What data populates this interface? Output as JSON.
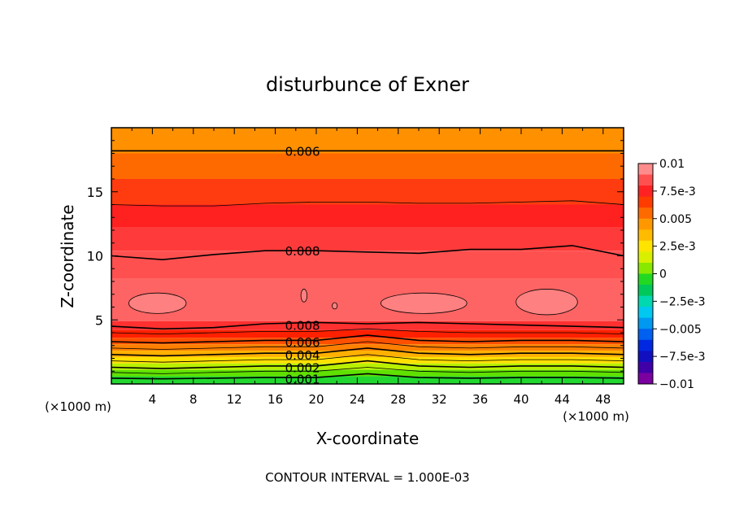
{
  "chart_data": {
    "type": "contour",
    "title": "disturbunce of Exner",
    "xlabel": "X-coordinate",
    "ylabel": "Z-coordinate",
    "x_unit_left": "(×1000 m)",
    "x_unit_right": "(×1000 m)",
    "xlim": [
      0,
      50
    ],
    "ylim": [
      0,
      20
    ],
    "xticks": [
      4,
      8,
      12,
      16,
      20,
      24,
      28,
      32,
      36,
      40,
      44,
      48
    ],
    "xtick_labels": [
      "4",
      "8",
      "12",
      "16",
      "20",
      "24",
      "28",
      "32",
      "36",
      "40",
      "44",
      "48"
    ],
    "yticks": [
      5,
      10,
      15
    ],
    "ytick_labels": [
      "5",
      "10",
      "15"
    ],
    "footer": "CONTOUR INTERVAL = 1.000E-03",
    "contour_interval": 0.001,
    "contour_labels": [
      {
        "text": "0.006",
        "value": 0.006,
        "x": 18.5,
        "z": 18.2
      },
      {
        "text": "0.008",
        "value": 0.008,
        "x": 18.5,
        "z": 10.4
      },
      {
        "text": "0.008",
        "value": 0.008,
        "x": 18.5,
        "z": 4.6
      },
      {
        "text": "0.006",
        "value": 0.006,
        "x": 18.5,
        "z": 3.3
      },
      {
        "text": "0.004",
        "value": 0.004,
        "x": 18.5,
        "z": 2.3
      },
      {
        "text": "0.002",
        "value": 0.002,
        "x": 18.5,
        "z": 1.3
      },
      {
        "text": "0.001",
        "value": 0.001,
        "x": 18.5,
        "z": 0.4
      }
    ],
    "colorbar": {
      "labels": [
        "0.01",
        "7.5e-3",
        "0.005",
        "2.5e-3",
        "0",
        "−2.5e-3",
        "−0.005",
        "−7.5e-3",
        "−0.01"
      ],
      "colors_top_to_bottom": [
        "#ff8c8c",
        "#ff5050",
        "#ff2222",
        "#ff3c00",
        "#ff6a00",
        "#ff9800",
        "#ffbb00",
        "#ffe400",
        "#d8f000",
        "#88e800",
        "#22d822",
        "#00c85a",
        "#00d8b0",
        "#00c8f0",
        "#0098f0",
        "#0060f0",
        "#0028e0",
        "#1010c0",
        "#4000a8",
        "#7a00a0"
      ]
    },
    "field_bands": [
      {
        "z_top": 20.0,
        "z_bot": 18.0,
        "color": "#ff9000"
      },
      {
        "z_top": 18.0,
        "z_bot": 16.0,
        "color": "#ff6a00"
      },
      {
        "z_top": 16.0,
        "z_bot": 14.0,
        "color": "#ff3c10"
      },
      {
        "z_top": 14.0,
        "z_bot": 12.2,
        "color": "#ff2020"
      },
      {
        "z_top": 12.2,
        "z_bot": 10.4,
        "color": "#ff3a3a"
      },
      {
        "z_top": 10.4,
        "z_bot": 8.2,
        "color": "#ff5050"
      },
      {
        "z_top": 8.2,
        "z_bot": 4.9,
        "color": "#ff6464"
      },
      {
        "z_top": 4.9,
        "z_bot": 4.2,
        "color": "#ff3030"
      },
      {
        "z_top": 4.2,
        "z_bot": 3.6,
        "color": "#ff2000"
      },
      {
        "z_top": 3.6,
        "z_bot": 3.1,
        "color": "#ff5000"
      },
      {
        "z_top": 3.1,
        "z_bot": 2.6,
        "color": "#ff8000"
      },
      {
        "z_top": 2.6,
        "z_bot": 2.1,
        "color": "#ffb000"
      },
      {
        "z_top": 2.1,
        "z_bot": 1.6,
        "color": "#ffe000"
      },
      {
        "z_top": 1.6,
        "z_bot": 1.1,
        "color": "#b8f000"
      },
      {
        "z_top": 1.1,
        "z_bot": 0.6,
        "color": "#60e000"
      },
      {
        "z_top": 0.6,
        "z_bot": 0.0,
        "color": "#22d830"
      }
    ],
    "contour_lines": [
      {
        "value": 0.006,
        "z": [
          18.2,
          18.2,
          18.2,
          18.2,
          18.2,
          18.2,
          18.2,
          18.2,
          18.2,
          18.2,
          18.2
        ],
        "weight": "bold"
      },
      {
        "value": 0.007,
        "z": [
          14.0,
          13.9,
          13.9,
          14.1,
          14.2,
          14.2,
          14.1,
          14.1,
          14.2,
          14.3,
          14.0
        ],
        "weight": "thin"
      },
      {
        "value": 0.008,
        "z": [
          10.0,
          9.7,
          10.1,
          10.4,
          10.4,
          10.3,
          10.2,
          10.5,
          10.5,
          10.8,
          10.0
        ],
        "weight": "bold"
      },
      {
        "value": 0.008,
        "z": [
          4.5,
          4.3,
          4.4,
          4.7,
          4.8,
          4.7,
          4.8,
          4.7,
          4.6,
          4.5,
          4.4
        ],
        "weight": "bold"
      },
      {
        "value": 0.007,
        "z": [
          4.0,
          3.9,
          4.0,
          4.1,
          4.1,
          4.3,
          4.1,
          4.0,
          4.0,
          4.0,
          3.9
        ],
        "weight": "thin"
      },
      {
        "value": 0.006,
        "z": [
          3.3,
          3.2,
          3.3,
          3.4,
          3.4,
          3.8,
          3.4,
          3.3,
          3.4,
          3.4,
          3.3
        ],
        "weight": "bold"
      },
      {
        "value": 0.005,
        "z": [
          2.8,
          2.7,
          2.8,
          2.9,
          2.9,
          3.3,
          2.9,
          2.8,
          2.9,
          2.9,
          2.8
        ],
        "weight": "thin"
      },
      {
        "value": 0.004,
        "z": [
          2.3,
          2.2,
          2.3,
          2.4,
          2.4,
          2.8,
          2.4,
          2.3,
          2.4,
          2.4,
          2.3
        ],
        "weight": "bold"
      },
      {
        "value": 0.003,
        "z": [
          1.8,
          1.7,
          1.8,
          1.9,
          1.9,
          2.3,
          1.9,
          1.8,
          1.9,
          1.9,
          1.8
        ],
        "weight": "thin"
      },
      {
        "value": 0.002,
        "z": [
          1.3,
          1.2,
          1.3,
          1.4,
          1.4,
          1.8,
          1.4,
          1.3,
          1.4,
          1.4,
          1.3
        ],
        "weight": "bold"
      },
      {
        "value": 0.0015,
        "z": [
          0.9,
          0.8,
          0.9,
          1.0,
          1.0,
          1.3,
          1.0,
          0.9,
          1.0,
          1.0,
          0.9
        ],
        "weight": "thin"
      },
      {
        "value": 0.001,
        "z": [
          0.45,
          0.4,
          0.45,
          0.5,
          0.5,
          0.8,
          0.5,
          0.45,
          0.5,
          0.5,
          0.45
        ],
        "weight": "bold"
      }
    ],
    "contour_x": [
      0,
      5,
      10,
      15,
      20,
      25,
      30,
      35,
      40,
      45,
      50
    ],
    "highs": [
      {
        "x": 4.5,
        "z": 6.3,
        "rx": 2.8,
        "rz": 0.8
      },
      {
        "x": 30.5,
        "z": 6.3,
        "rx": 4.2,
        "rz": 0.8
      },
      {
        "x": 42.5,
        "z": 6.4,
        "rx": 3.0,
        "rz": 1.0
      },
      {
        "x": 18.8,
        "z": 6.9,
        "rx": 0.3,
        "rz": 0.5
      },
      {
        "x": 21.8,
        "z": 6.1,
        "rx": 0.25,
        "rz": 0.25
      }
    ]
  }
}
